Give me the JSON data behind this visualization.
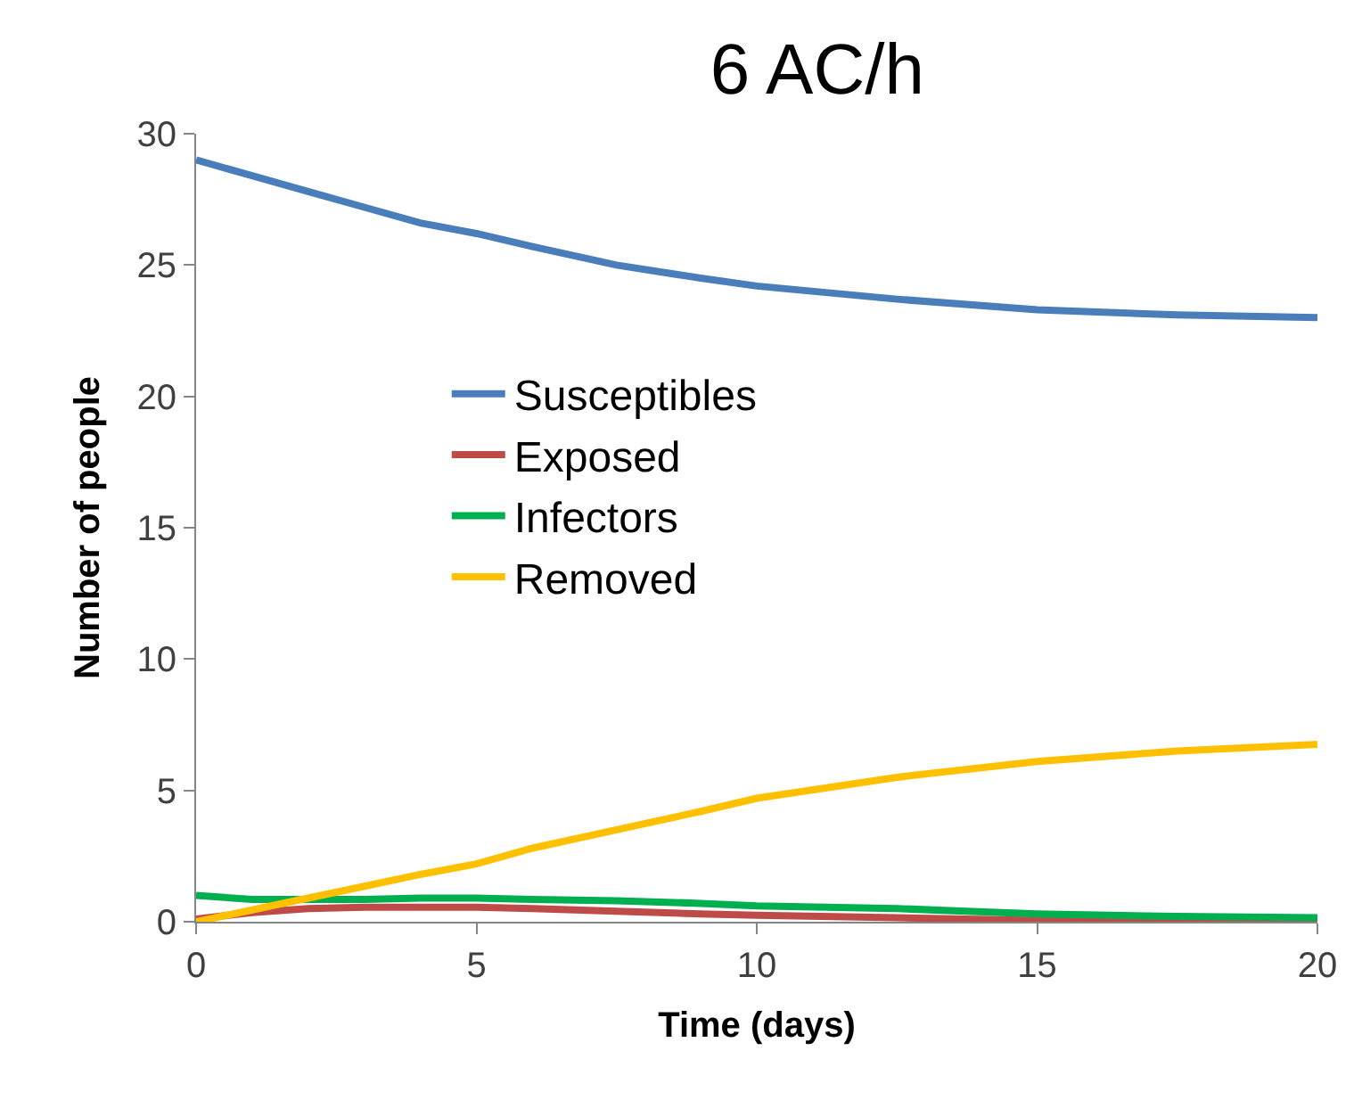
{
  "chart_data": {
    "type": "line",
    "title": "6 AC/h",
    "xlabel": "Time (days)",
    "ylabel": "Number of people",
    "x": [
      0,
      1,
      2,
      3,
      4,
      5,
      6,
      7.5,
      9,
      10,
      12.5,
      15,
      17.5,
      20
    ],
    "series": [
      {
        "name": "Susceptibles",
        "color": "#4a7ebb",
        "values": [
          29,
          28.4,
          27.8,
          27.2,
          26.6,
          26.2,
          25.7,
          25.0,
          24.5,
          24.2,
          23.7,
          23.3,
          23.1,
          23.0
        ]
      },
      {
        "name": "Exposed",
        "color": "#be4b48",
        "values": [
          0.1,
          0.35,
          0.5,
          0.55,
          0.55,
          0.55,
          0.5,
          0.4,
          0.3,
          0.25,
          0.15,
          0.05,
          0.03,
          0.0
        ]
      },
      {
        "name": "Infectors",
        "color": "#00b050",
        "values": [
          1.0,
          0.85,
          0.85,
          0.85,
          0.9,
          0.9,
          0.85,
          0.8,
          0.7,
          0.6,
          0.5,
          0.3,
          0.2,
          0.15
        ]
      },
      {
        "name": "Removed",
        "color": "#ffc000",
        "values": [
          0.0,
          0.45,
          0.9,
          1.35,
          1.8,
          2.2,
          2.8,
          3.5,
          4.2,
          4.7,
          5.5,
          6.1,
          6.5,
          6.75
        ]
      }
    ],
    "xlim": [
      0,
      20
    ],
    "xticks": [
      0,
      5,
      10,
      15,
      20
    ],
    "ylim": [
      0,
      30
    ],
    "yticks": [
      0,
      5,
      10,
      15,
      20,
      25,
      30
    ],
    "legend": "center",
    "marker": "none",
    "line_style": "solid"
  }
}
